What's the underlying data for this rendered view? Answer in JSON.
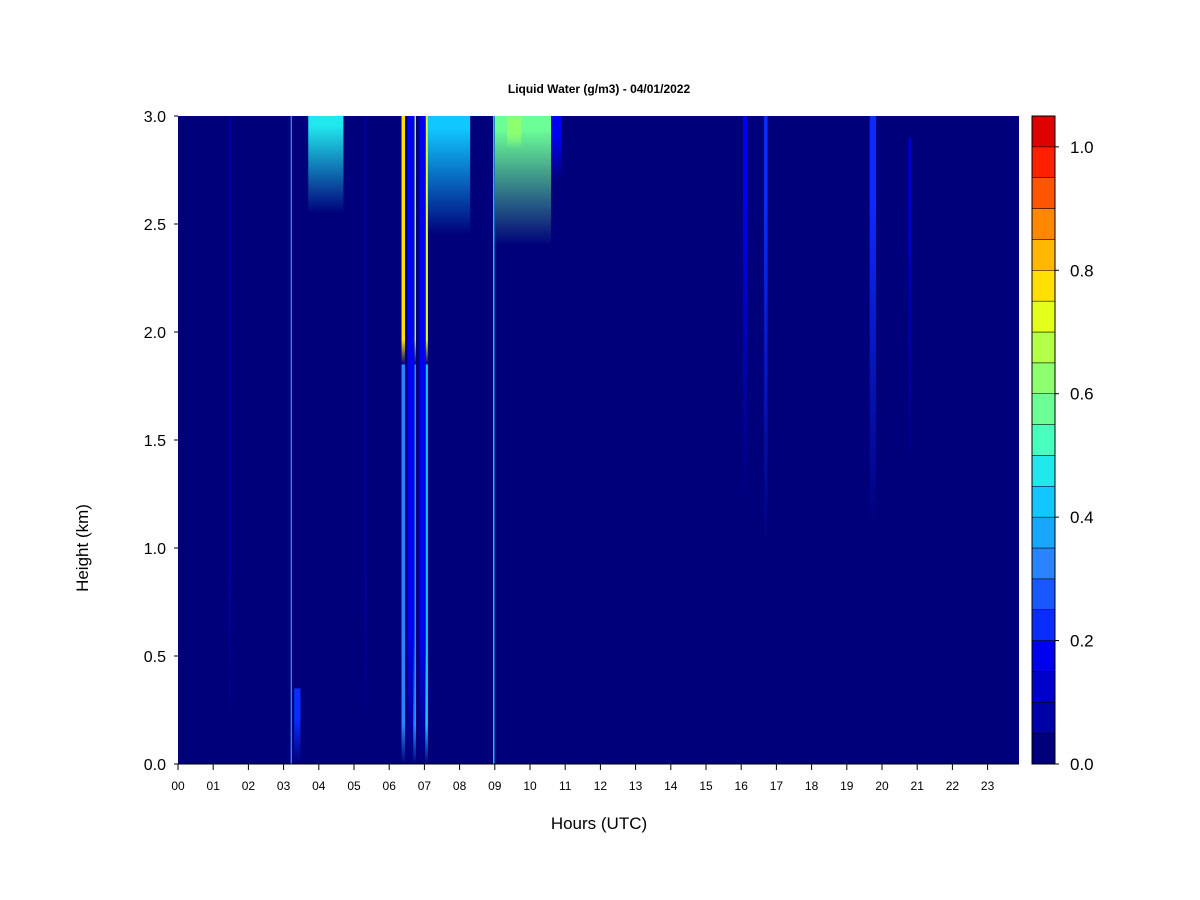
{
  "chart_data": {
    "type": "heatmap",
    "title": "Liquid Water (g/m3) - 04/01/2022",
    "xlabel": "Hours (UTC)",
    "ylabel": "Height (km)",
    "x_range": [
      0,
      24
    ],
    "y_range": [
      0,
      3.0
    ],
    "x_ticks": [
      "00",
      "01",
      "02",
      "03",
      "04",
      "05",
      "06",
      "07",
      "08",
      "09",
      "10",
      "11",
      "12",
      "13",
      "14",
      "15",
      "16",
      "17",
      "18",
      "19",
      "20",
      "21",
      "22",
      "23"
    ],
    "y_ticks": [
      "0.0",
      "0.5",
      "1.0",
      "1.5",
      "2.0",
      "2.5",
      "3.0"
    ],
    "colorbar": {
      "range": [
        0.0,
        1.05
      ],
      "step": 0.05,
      "ticks": [
        "0.0",
        "0.2",
        "0.4",
        "0.6",
        "0.8",
        "1.0"
      ],
      "colors": [
        "#00007a",
        "#0000a8",
        "#0000cc",
        "#0000f0",
        "#0a2cff",
        "#1a58ff",
        "#2b84ff",
        "#19a6ff",
        "#10c8ff",
        "#20e8ec",
        "#48ffbe",
        "#6cff96",
        "#8eff6e",
        "#b4ff4a",
        "#e4ff1a",
        "#ffe000",
        "#ffb800",
        "#ff8800",
        "#ff5400",
        "#ff2000",
        "#e00000",
        "#b40000",
        "#840000"
      ]
    },
    "background_value": 0.02,
    "features": [
      {
        "x": 3.2,
        "width": 0.04,
        "ytop": 3.0,
        "ybot": 0.0,
        "value": 0.35,
        "fade": 0.0
      },
      {
        "x": 3.7,
        "width": 1.0,
        "ytop": 3.0,
        "ybot": 2.55,
        "value": 0.45,
        "fade": 0.9
      },
      {
        "x": 3.3,
        "width": 0.18,
        "ytop": 0.35,
        "ybot": 0.0,
        "value": 0.22,
        "fade": 0.6
      },
      {
        "x": 6.35,
        "width": 0.1,
        "ytop": 3.0,
        "ybot": 1.85,
        "value": 0.78,
        "fade": 0.1
      },
      {
        "x": 6.35,
        "width": 0.1,
        "ytop": 1.85,
        "ybot": 0.0,
        "value": 0.35,
        "fade": 0.1
      },
      {
        "x": 6.68,
        "width": 0.08,
        "ytop": 3.0,
        "ybot": 1.85,
        "value": 0.66,
        "fade": 0.1
      },
      {
        "x": 6.68,
        "width": 0.08,
        "ytop": 1.85,
        "ybot": 0.0,
        "value": 0.38,
        "fade": 0.1
      },
      {
        "x": 7.02,
        "width": 0.08,
        "ytop": 3.0,
        "ybot": 1.85,
        "value": 0.72,
        "fade": 0.1
      },
      {
        "x": 7.02,
        "width": 0.08,
        "ytop": 1.85,
        "ybot": 0.0,
        "value": 0.4,
        "fade": 0.1
      },
      {
        "x": 6.52,
        "width": 0.2,
        "ytop": 3.0,
        "ybot": 0.0,
        "value": 0.18,
        "fade": 0.2
      },
      {
        "x": 6.86,
        "width": 0.18,
        "ytop": 3.0,
        "ybot": 0.0,
        "value": 0.16,
        "fade": 0.2
      },
      {
        "x": 7.1,
        "width": 1.2,
        "ytop": 3.0,
        "ybot": 2.45,
        "value": 0.4,
        "fade": 0.9
      },
      {
        "x": 8.95,
        "width": 0.04,
        "ytop": 3.0,
        "ybot": 0.0,
        "value": 0.4,
        "fade": 0.0
      },
      {
        "x": 9.0,
        "width": 1.6,
        "ytop": 3.0,
        "ybot": 2.4,
        "value": 0.55,
        "fade": 0.9
      },
      {
        "x": 9.35,
        "width": 0.4,
        "ytop": 3.0,
        "ybot": 2.85,
        "value": 0.62,
        "fade": 0.5
      },
      {
        "x": 10.6,
        "width": 0.3,
        "ytop": 3.0,
        "ybot": 2.7,
        "value": 0.18,
        "fade": 0.7
      },
      {
        "x": 16.05,
        "width": 0.12,
        "ytop": 3.0,
        "ybot": 1.2,
        "value": 0.16,
        "fade": 0.8
      },
      {
        "x": 16.65,
        "width": 0.1,
        "ytop": 3.0,
        "ybot": 1.0,
        "value": 0.22,
        "fade": 0.8
      },
      {
        "x": 19.65,
        "width": 0.18,
        "ytop": 3.0,
        "ybot": 1.1,
        "value": 0.2,
        "fade": 0.8
      },
      {
        "x": 20.75,
        "width": 0.08,
        "ytop": 2.9,
        "ybot": 1.3,
        "value": 0.1,
        "fade": 0.8
      },
      {
        "x": 1.45,
        "width": 0.05,
        "ytop": 3.0,
        "ybot": 0.0,
        "value": 0.08,
        "fade": 0.3
      },
      {
        "x": 5.3,
        "width": 0.05,
        "ytop": 3.0,
        "ybot": 0.0,
        "value": 0.07,
        "fade": 0.3
      }
    ]
  }
}
